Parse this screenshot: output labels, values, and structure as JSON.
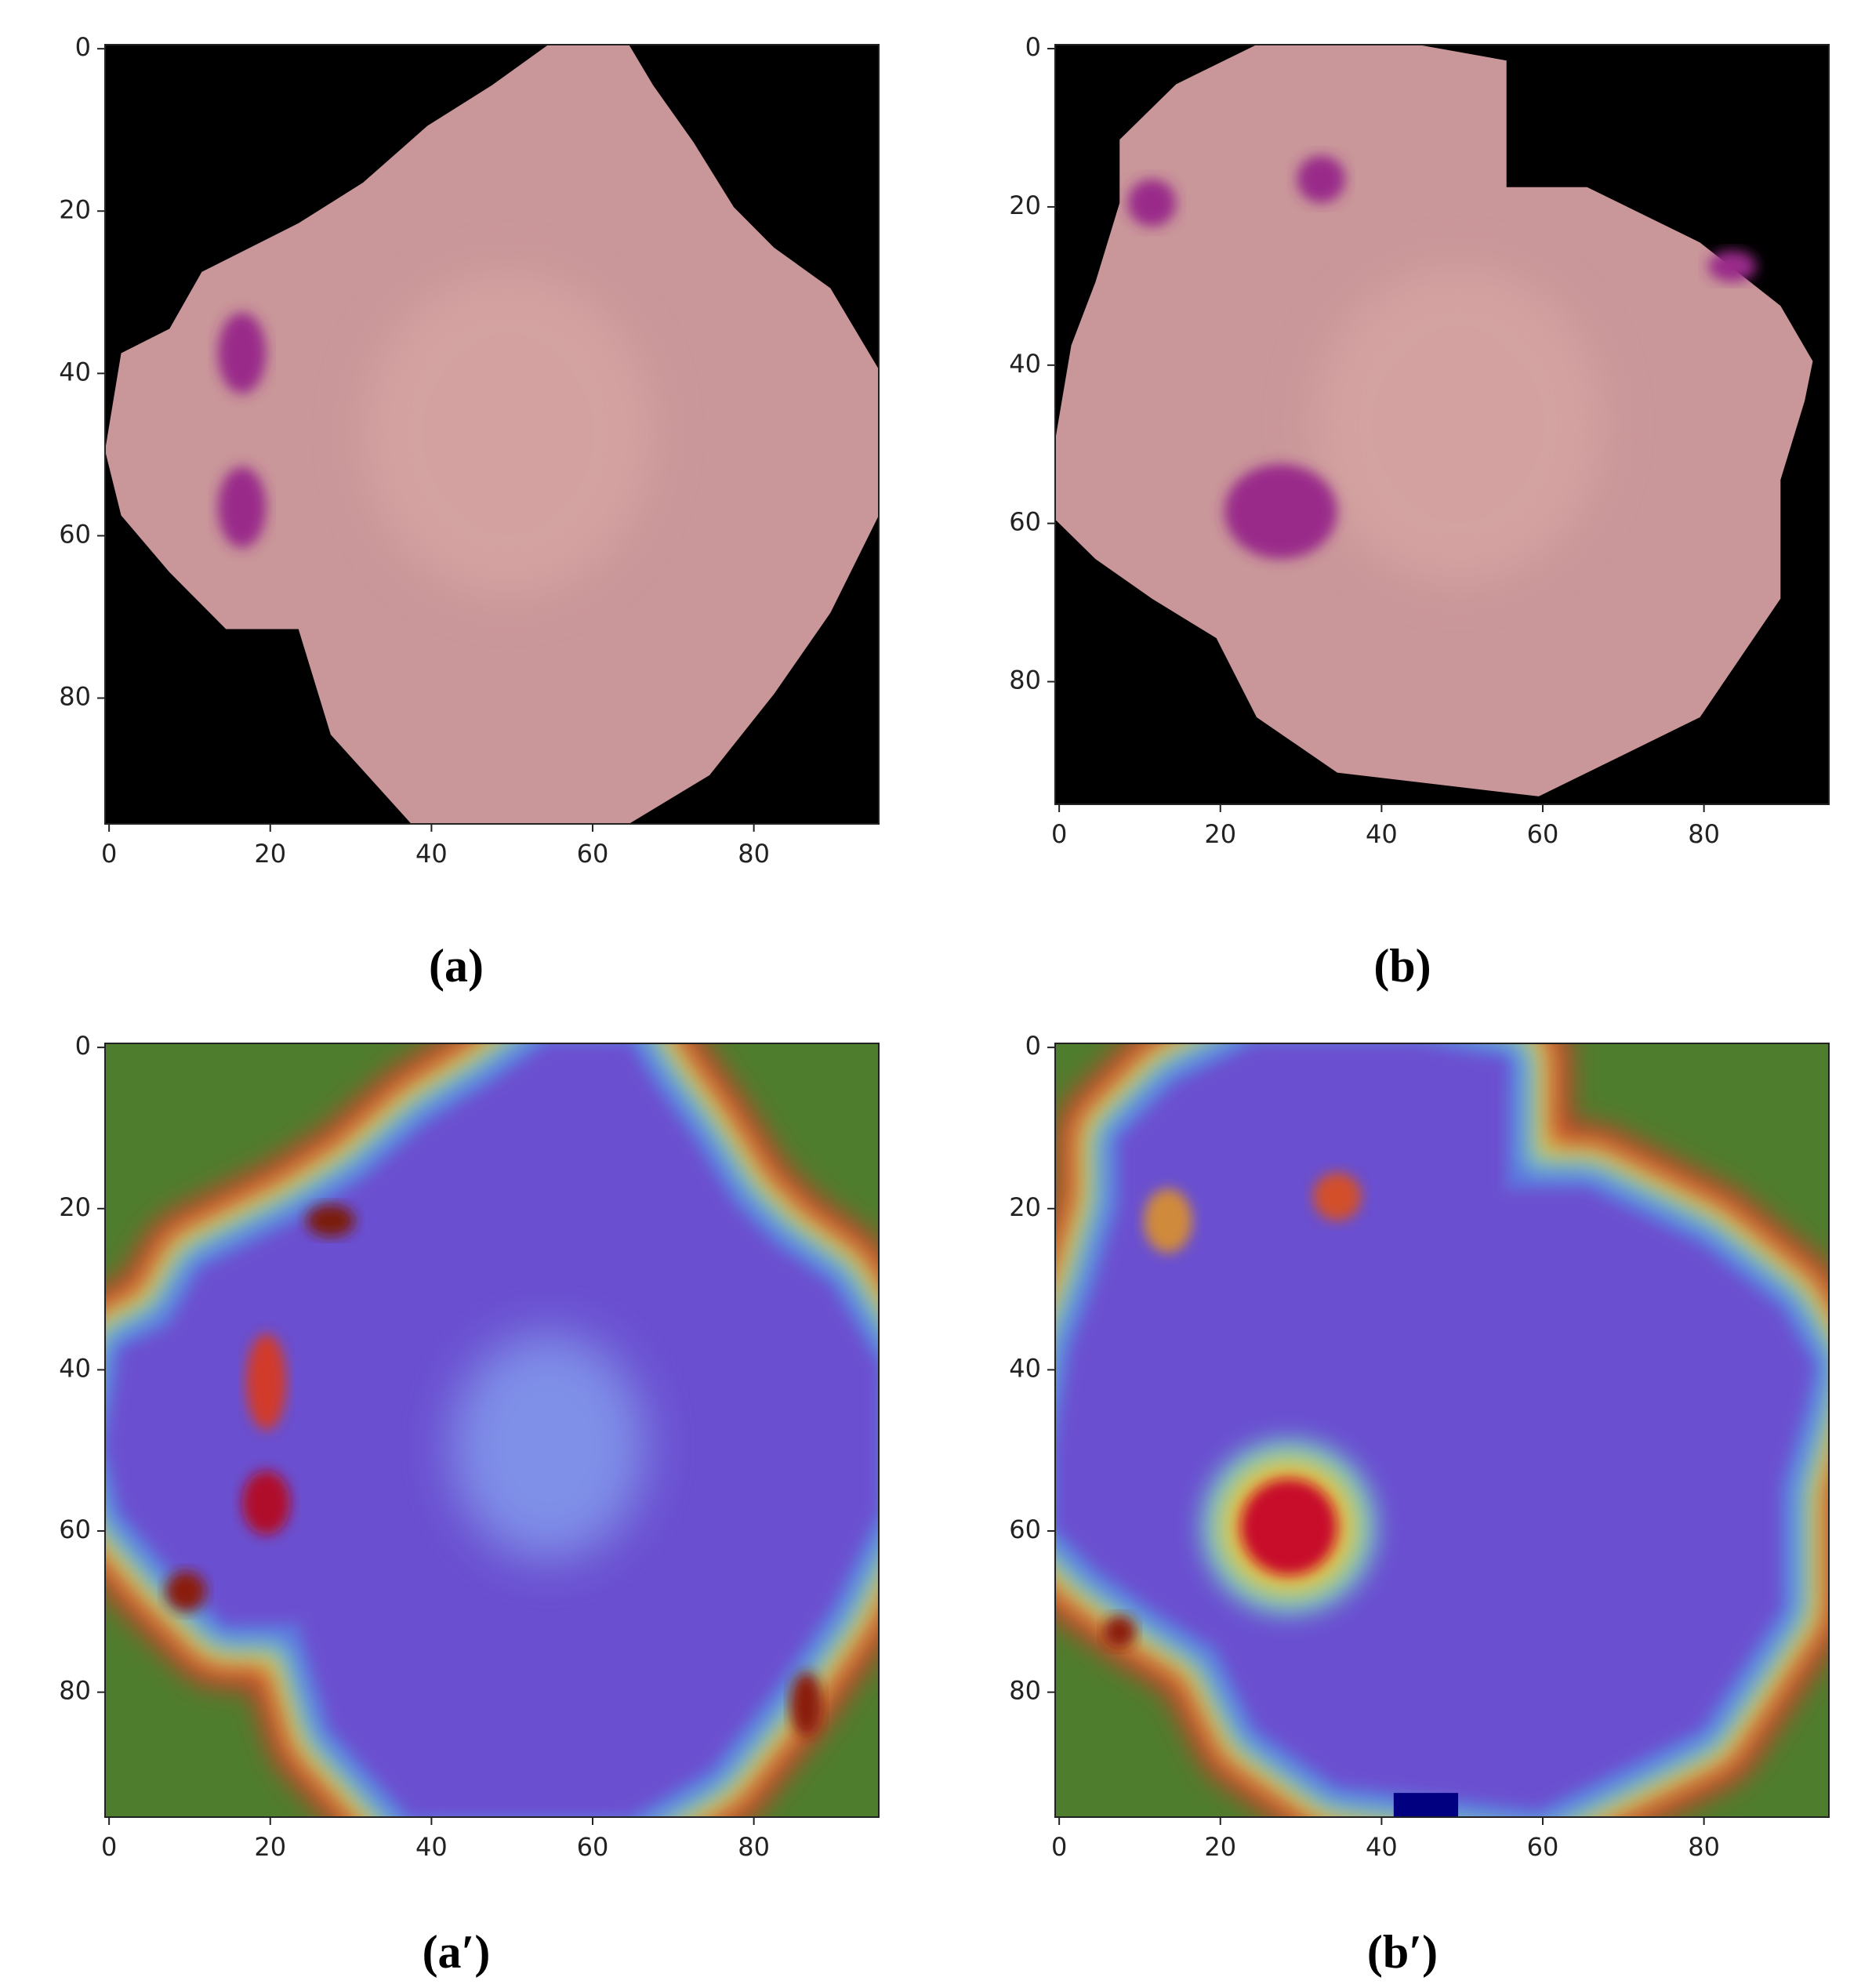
{
  "panels": [
    {
      "label": "(a)",
      "xticks": [
        0,
        20,
        40,
        60,
        80
      ],
      "yticks": [
        0,
        20,
        40,
        60,
        80
      ],
      "xlim": [
        -0.5,
        95.5
      ],
      "ylim": [
        95.5,
        -0.5
      ]
    },
    {
      "label": "(b)",
      "xticks": [
        0,
        20,
        40,
        60,
        80
      ],
      "yticks": [
        0,
        20,
        40,
        60,
        80
      ],
      "xlim": [
        -0.5,
        95.5
      ],
      "ylim": [
        95.5,
        -0.5
      ]
    },
    {
      "label": "(a′)",
      "xticks": [
        0,
        20,
        40,
        60,
        80
      ],
      "yticks": [
        0,
        20,
        40,
        60,
        80
      ],
      "xlim": [
        -0.5,
        95.5
      ],
      "ylim": [
        95.5,
        -0.5
      ]
    },
    {
      "label": "(b′)",
      "xticks": [
        0,
        20,
        40,
        60,
        80
      ],
      "yticks": [
        0,
        20,
        40,
        60,
        80
      ],
      "xlim": [
        -0.5,
        95.5
      ],
      "ylim": [
        95.5,
        -0.5
      ]
    }
  ]
}
